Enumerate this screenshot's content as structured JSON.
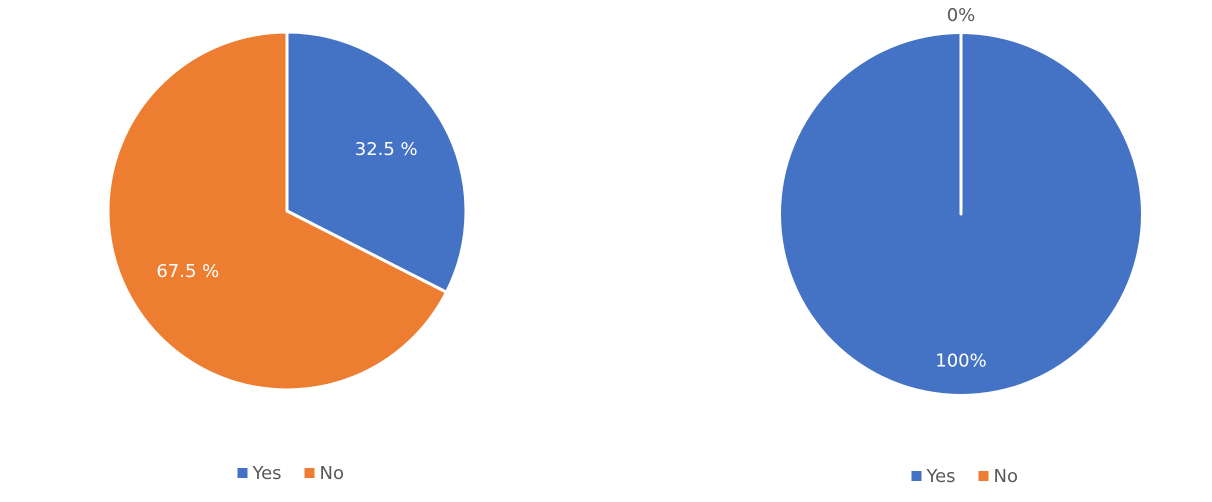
{
  "chart_data": [
    {
      "type": "pie",
      "categories": [
        "Yes",
        "No"
      ],
      "values": [
        32.5,
        67.5
      ],
      "value_labels": [
        "32.5 %",
        "67.5 %"
      ],
      "colors": [
        "#4472c4",
        "#ed7d31"
      ]
    },
    {
      "type": "pie",
      "categories": [
        "Yes",
        "No"
      ],
      "values": [
        100,
        0
      ],
      "value_labels": [
        "100%",
        "0%"
      ],
      "colors": [
        "#4472c4",
        "#ed7d31"
      ]
    }
  ]
}
